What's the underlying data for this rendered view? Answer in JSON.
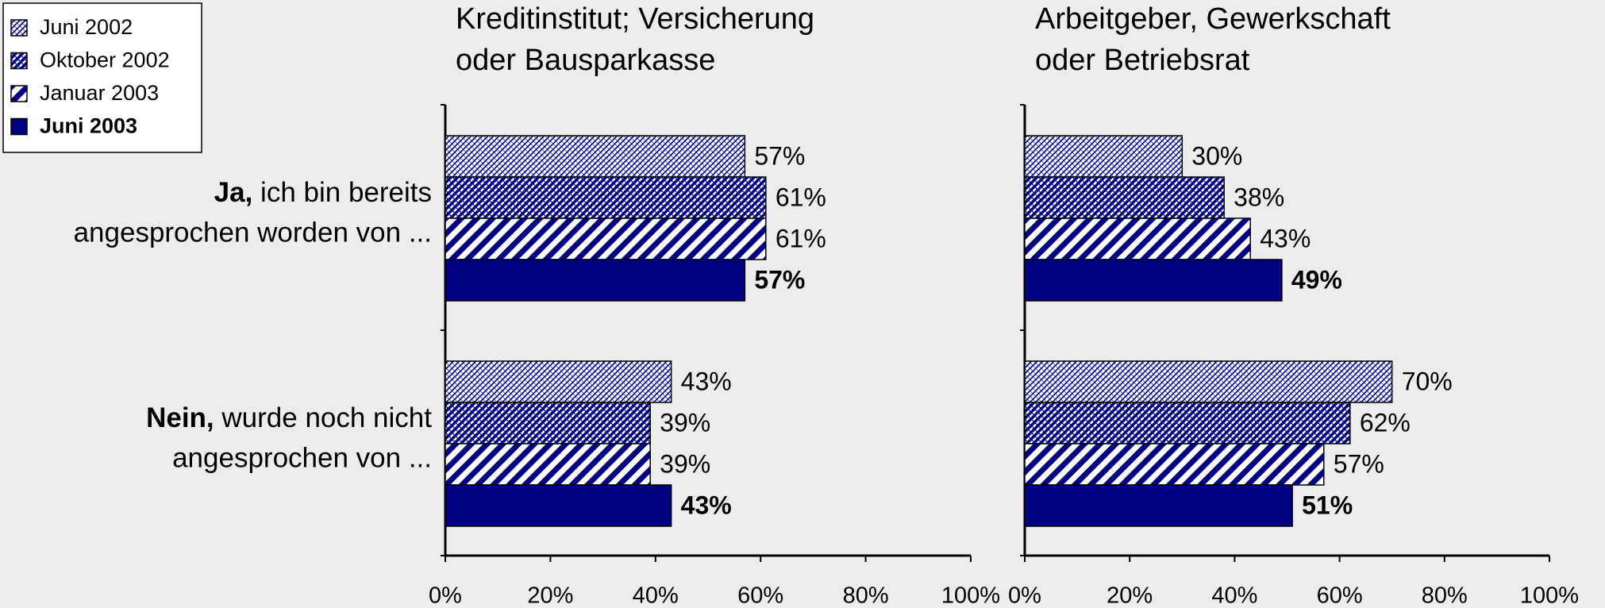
{
  "legend": {
    "position": "upper left"
  },
  "chart_data": [
    {
      "type": "barh",
      "title": [
        "Kreditinstitut; Versicherung",
        "oder Bausparkasse"
      ],
      "categories": [
        {
          "bold": "Ja,",
          "line1": "ich bin bereits",
          "line2": "angesprochen worden von ..."
        },
        {
          "bold": "Nein,",
          "line1": "wurde noch nicht",
          "line2": "angesprochen von ..."
        }
      ],
      "series": [
        {
          "name": "Juni 2002",
          "color": "#000080",
          "pattern": "fine",
          "values": [
            57,
            43
          ],
          "value_labels": [
            "57%",
            "43%"
          ]
        },
        {
          "name": "Oktober 2002",
          "color": "#000080",
          "pattern": "dense",
          "values": [
            61,
            39
          ],
          "value_labels": [
            "61%",
            "39%"
          ]
        },
        {
          "name": "Januar 2003",
          "color": "#000080",
          "pattern": "wide",
          "values": [
            61,
            39
          ],
          "value_labels": [
            "61%",
            "39%"
          ]
        },
        {
          "name": "Juni 2003",
          "color": "#000080",
          "pattern": "solid",
          "bold": true,
          "values": [
            57,
            43
          ],
          "value_labels": [
            "57%",
            "43%"
          ]
        }
      ],
      "xlim": [
        0,
        100
      ],
      "xticks": [
        {
          "value": 0,
          "label": "0%"
        },
        {
          "value": 20,
          "label": "20%"
        },
        {
          "value": 40,
          "label": "40%"
        },
        {
          "value": 60,
          "label": "60%"
        },
        {
          "value": 80,
          "label": "80%"
        },
        {
          "value": 100,
          "label": "100%"
        }
      ]
    },
    {
      "type": "barh",
      "title": [
        "Arbeitgeber, Gewerkschaft",
        "oder Betriebsrat"
      ],
      "series": [
        {
          "name": "Juni 2002",
          "color": "#000080",
          "pattern": "fine",
          "values": [
            30,
            70
          ],
          "value_labels": [
            "30%",
            "70%"
          ]
        },
        {
          "name": "Oktober 2002",
          "color": "#000080",
          "pattern": "dense",
          "values": [
            38,
            62
          ],
          "value_labels": [
            "38%",
            "62%"
          ]
        },
        {
          "name": "Januar 2003",
          "color": "#000080",
          "pattern": "wide",
          "values": [
            43,
            57
          ],
          "value_labels": [
            "43%",
            "57%"
          ]
        },
        {
          "name": "Juni 2003",
          "color": "#000080",
          "pattern": "solid",
          "bold": true,
          "values": [
            49,
            51
          ],
          "value_labels": [
            "49%",
            "51%"
          ]
        }
      ],
      "xlim": [
        0,
        100
      ],
      "xticks": [
        {
          "value": 0,
          "label": "0%"
        },
        {
          "value": 20,
          "label": "20%"
        },
        {
          "value": 40,
          "label": "40%"
        },
        {
          "value": 60,
          "label": "60%"
        },
        {
          "value": 80,
          "label": "80%"
        },
        {
          "value": 100,
          "label": "100%"
        }
      ]
    }
  ]
}
